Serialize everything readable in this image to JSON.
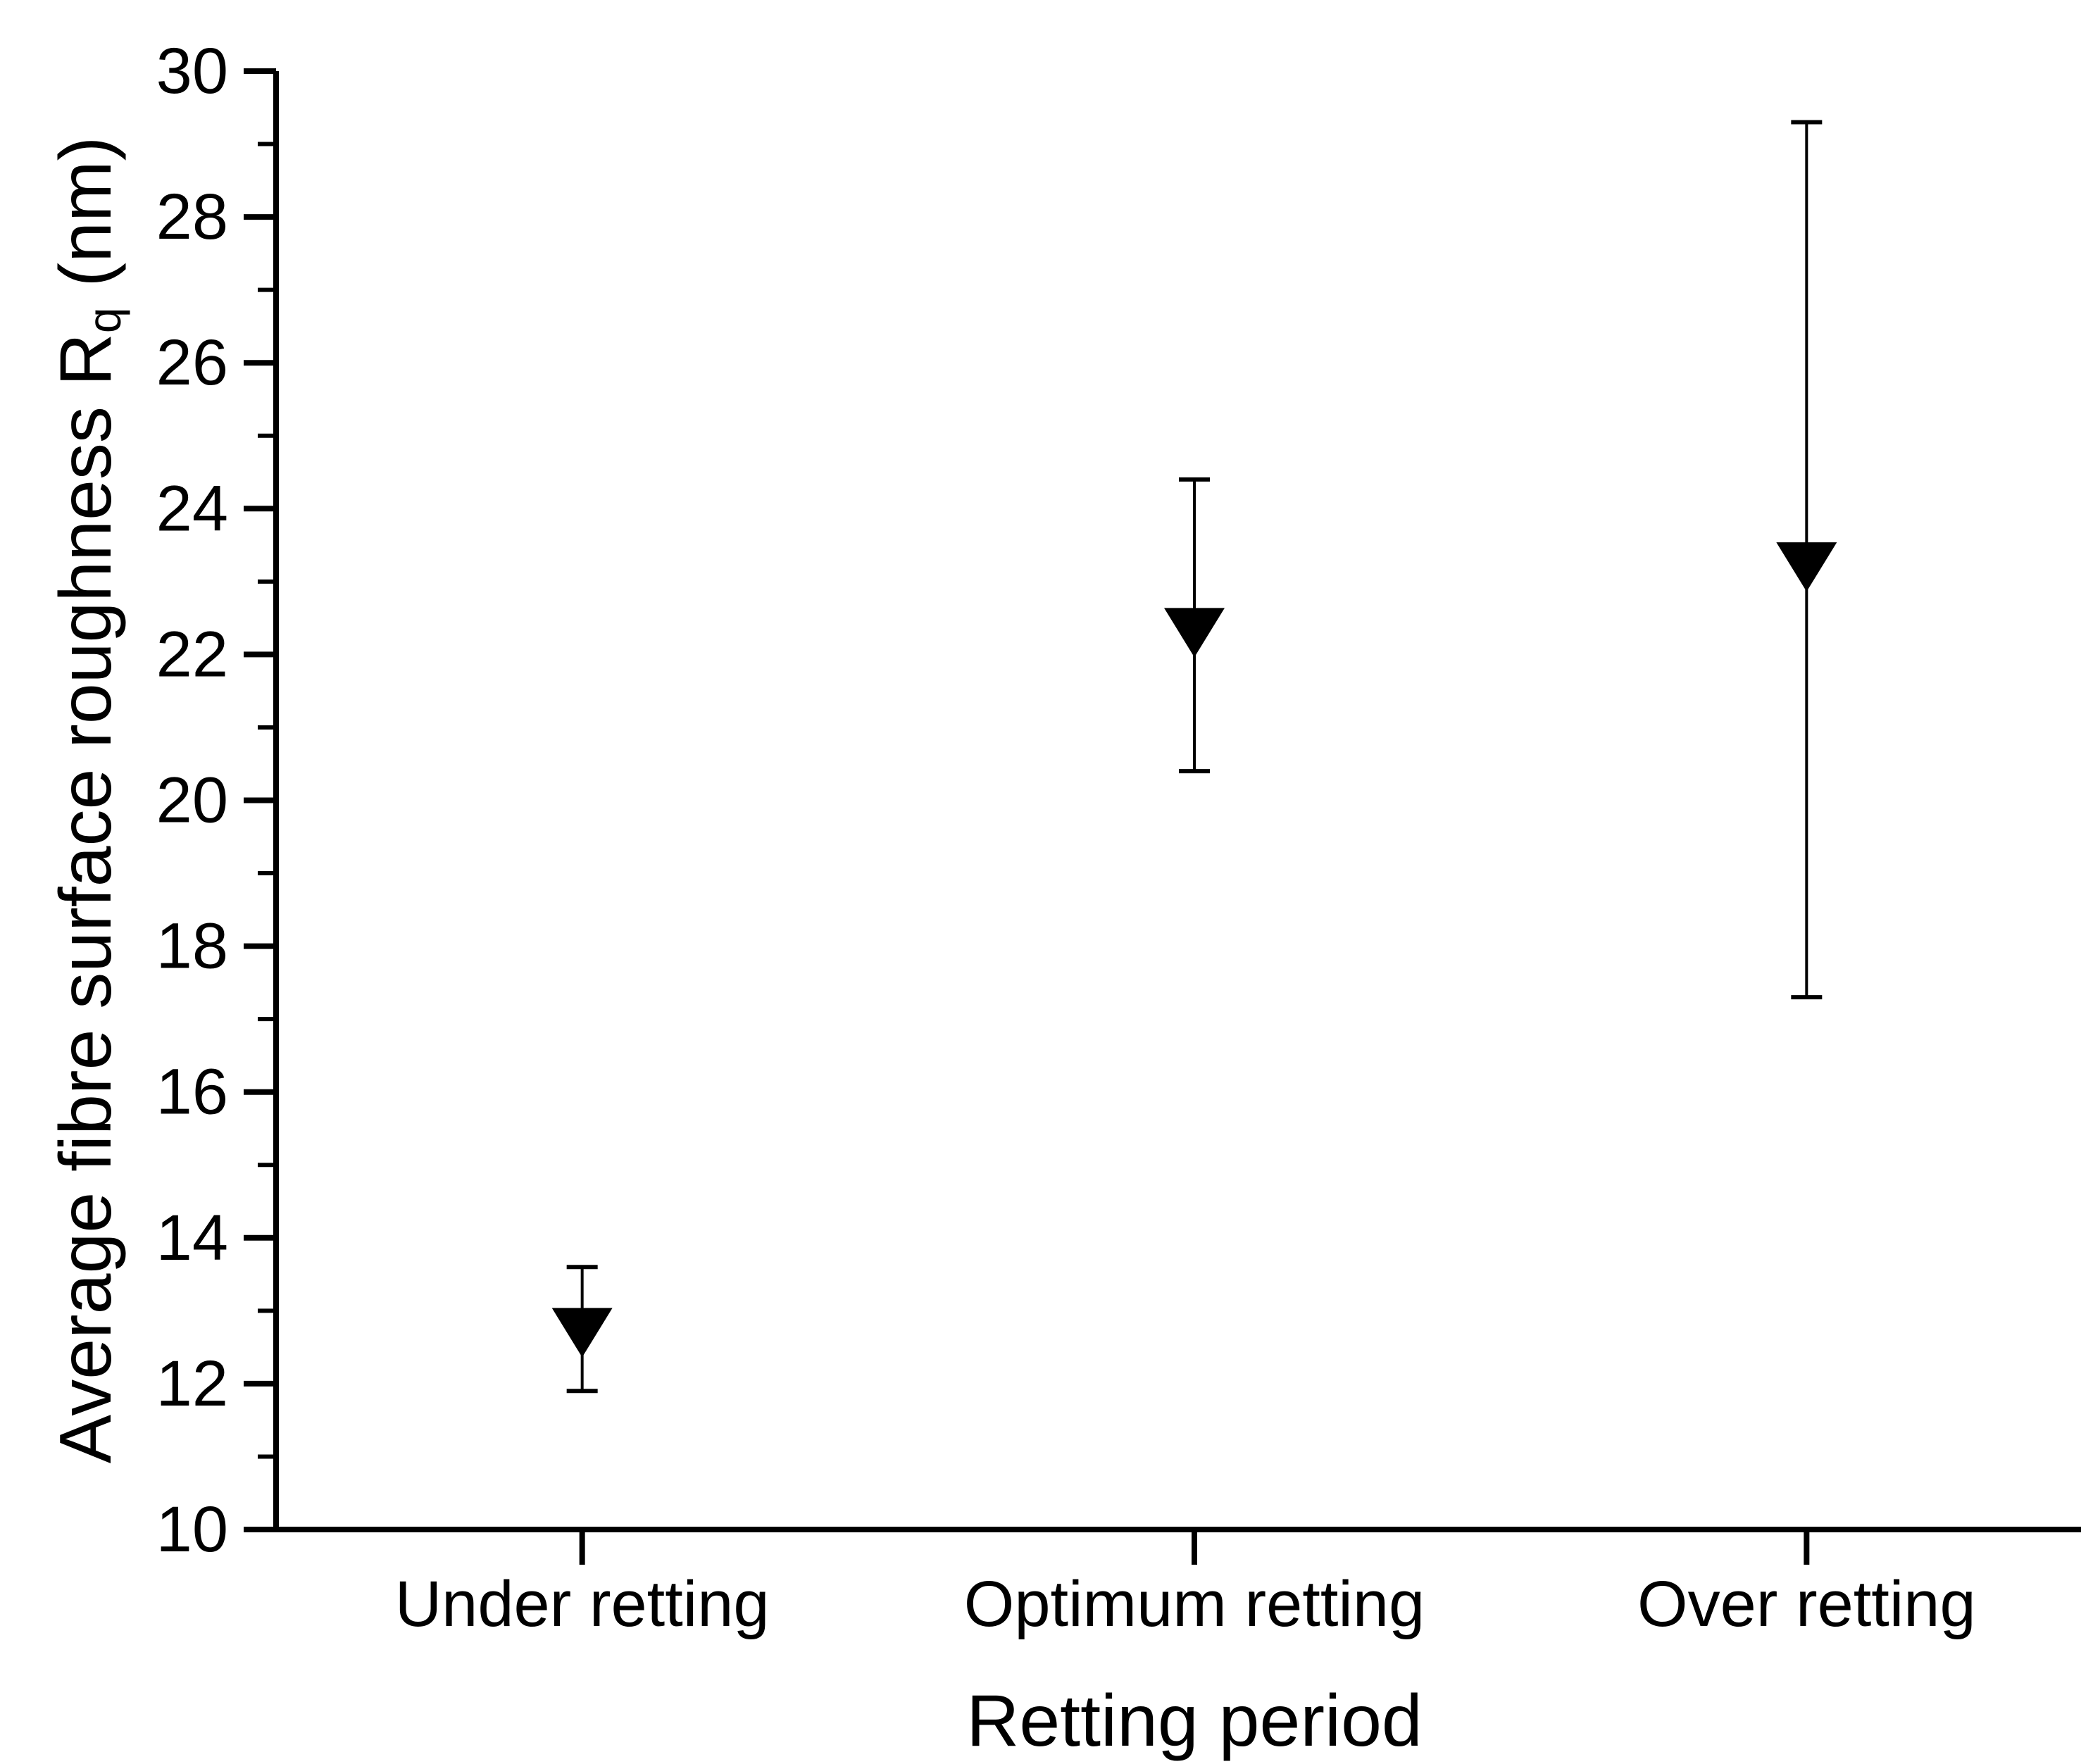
{
  "chart_data": {
    "type": "scatter",
    "title": "",
    "xlabel": "Retting period",
    "ylabel": "Average fibre surface roughness Rq (nm)",
    "ylabel_parts": {
      "prefix": "Average fibre surface roughness R",
      "subscript": "q",
      "suffix": " (nm)"
    },
    "categories": [
      "Under retting",
      "Optimum retting",
      "Over retting"
    ],
    "series": [
      {
        "name": "Average fibre surface roughness",
        "marker": "triangle-down-filled",
        "color": "#000000",
        "points": [
          {
            "category": "Under retting",
            "y": 12.7,
            "y_lower": 11.9,
            "y_upper": 13.6
          },
          {
            "category": "Optimum retting",
            "y": 22.3,
            "y_lower": 20.4,
            "y_upper": 24.4
          },
          {
            "category": "Over retting",
            "y": 23.2,
            "y_lower": 17.3,
            "y_upper": 29.3
          }
        ]
      }
    ],
    "y_axis": {
      "min": 10,
      "max": 30,
      "major_step": 2,
      "minor_step": 1,
      "tick_labels": [
        "10",
        "12",
        "14",
        "16",
        "18",
        "20",
        "22",
        "24",
        "26",
        "28",
        "30"
      ]
    },
    "x_axis": {
      "tick_labels": [
        "Under retting",
        "Optimum retting",
        "Over retting"
      ]
    },
    "grid": false,
    "legend": false,
    "frame": "bottom-left-only",
    "axis_color": "#000000",
    "background_color": "#ffffff"
  }
}
